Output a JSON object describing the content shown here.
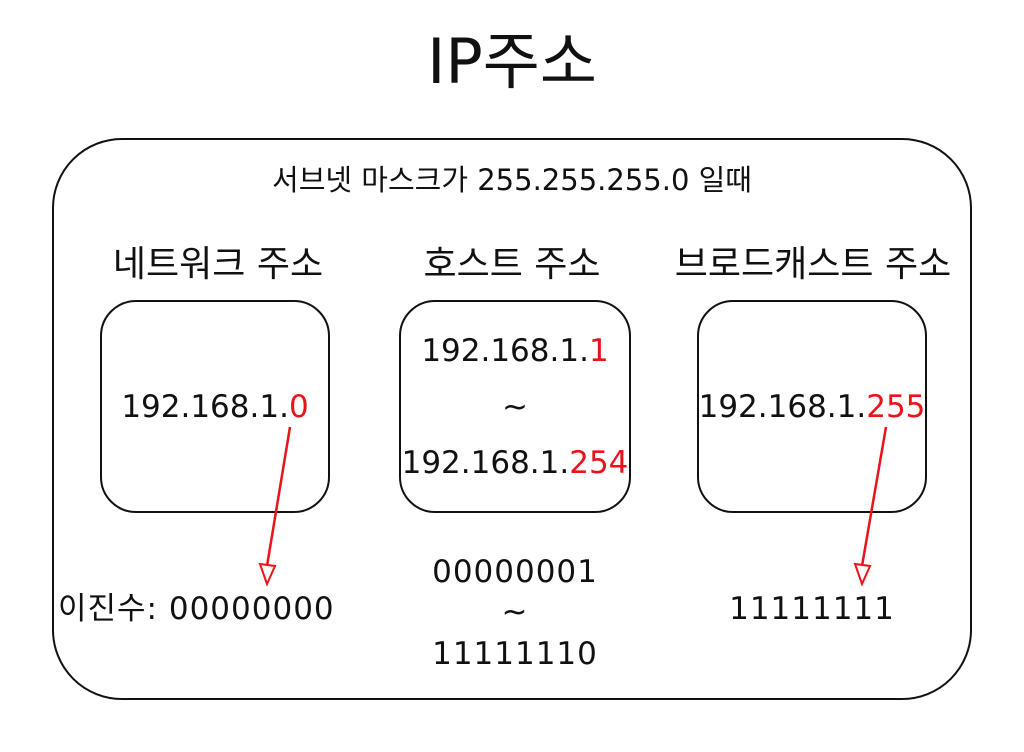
{
  "title": "IP주소",
  "subtitle": "서브넷 마스크가 255.255.255.0 일때",
  "colors": {
    "highlight": "#e8141a",
    "line": "#111111"
  },
  "network": {
    "heading": "네트워크 주소",
    "ip_prefix": "192.168.1.",
    "ip_host": "0",
    "binary_label": "이진수: ",
    "binary": "00000000"
  },
  "host": {
    "heading": "호스트 주소",
    "first_prefix": "192.168.1.",
    "first_host": "1",
    "range_symbol": "~",
    "last_prefix": "192.168.1.",
    "last_host": "254",
    "binary_first": "00000001",
    "binary_range": "~",
    "binary_last": "11111110"
  },
  "broadcast": {
    "heading": "브로드캐스트 주소",
    "ip_prefix": "192.168.1.",
    "ip_host": "255",
    "binary": "11111111"
  }
}
